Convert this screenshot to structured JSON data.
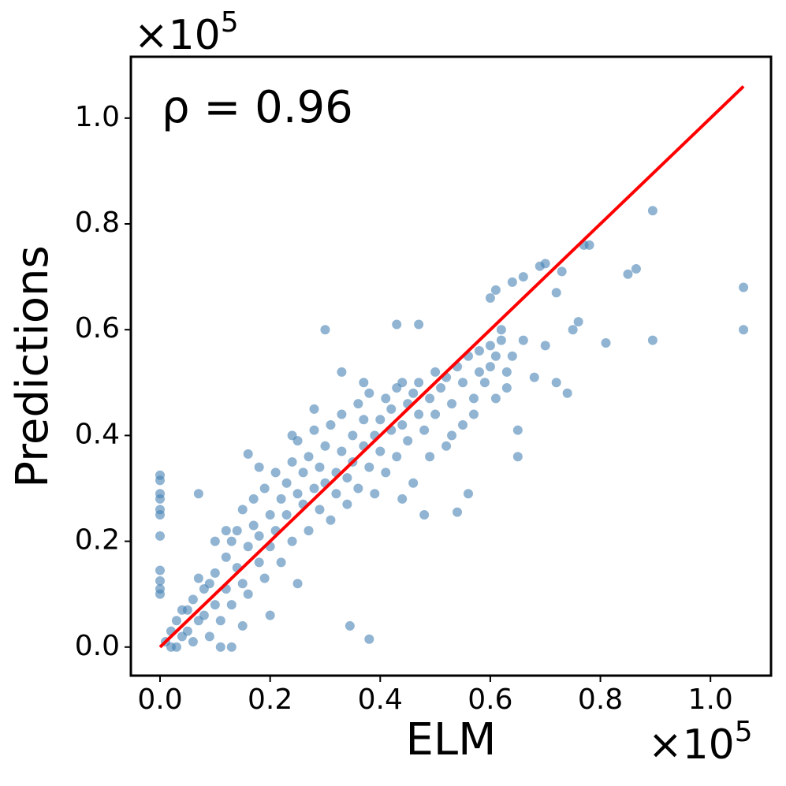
{
  "chart_data": {
    "type": "scatter",
    "x_label": "ELM",
    "y_label": "Predictions",
    "annotation": "ρ = 0.96",
    "x_offset": {
      "base": "×10",
      "exponent": "5"
    },
    "y_offset": {
      "base": "×10",
      "exponent": "5"
    },
    "color": "#4682b4",
    "x": [
      1.06,
      1.06,
      0.895,
      0.895,
      0.865,
      0.85,
      0.78,
      0.77,
      0.81,
      0.76,
      0.75,
      0.73,
      0.72,
      0.7,
      0.69,
      0.66,
      0.64,
      0.6,
      0.61,
      0,
      0,
      0,
      0,
      0,
      0,
      0,
      0,
      0,
      0,
      0,
      0.38,
      0.345,
      0.07,
      0.3,
      0.43,
      0.47,
      0.16,
      0.65,
      0.65,
      0.54,
      0.48,
      0.56,
      0.13,
      0.72,
      0.74,
      0.68,
      0.64,
      0.62,
      0.66,
      0.7,
      0.63,
      0.61,
      0.01,
      0.02,
      0.02,
      0.03,
      0.04,
      0.05,
      0.05,
      0.06,
      0.06,
      0.07,
      0.08,
      0.08,
      0.09,
      0.1,
      0.1,
      0.11,
      0.12,
      0.12,
      0.13,
      0.13,
      0.14,
      0.14,
      0.15,
      0.15,
      0.16,
      0.16,
      0.17,
      0.17,
      0.18,
      0.18,
      0.19,
      0.19,
      0.2,
      0.2,
      0.21,
      0.21,
      0.22,
      0.22,
      0.23,
      0.23,
      0.24,
      0.24,
      0.25,
      0.25,
      0.26,
      0.26,
      0.27,
      0.27,
      0.28,
      0.28,
      0.29,
      0.29,
      0.3,
      0.3,
      0.31,
      0.31,
      0.32,
      0.32,
      0.33,
      0.33,
      0.34,
      0.34,
      0.35,
      0.35,
      0.36,
      0.36,
      0.37,
      0.37,
      0.38,
      0.38,
      0.39,
      0.39,
      0.4,
      0.4,
      0.41,
      0.41,
      0.42,
      0.42,
      0.43,
      0.43,
      0.44,
      0.44,
      0.45,
      0.45,
      0.46,
      0.46,
      0.47,
      0.47,
      0.48,
      0.49,
      0.49,
      0.5,
      0.5,
      0.51,
      0.52,
      0.52,
      0.53,
      0.54,
      0.55,
      0.55,
      0.56,
      0.57,
      0.58,
      0.58,
      0.59,
      0.6,
      0.6,
      0.61,
      0.62,
      0.63,
      0.57,
      0.53,
      0.44,
      0.24,
      0.28,
      0.18,
      0.12,
      0.09,
      0.03,
      0.04,
      0.07,
      0.11,
      0.2,
      0.15,
      0.25,
      0.1,
      0.33,
      0.37
    ],
    "values": [
      0.68,
      0.6,
      0.825,
      0.58,
      0.715,
      0.705,
      0.76,
      0.76,
      0.575,
      0.615,
      0.6,
      0.71,
      0.67,
      0.725,
      0.72,
      0.7,
      0.69,
      0.66,
      0.675,
      0.325,
      0.315,
      0.29,
      0.28,
      0.26,
      0.25,
      0.21,
      0.145,
      0.125,
      0.11,
      0.1,
      0.015,
      0.04,
      0.29,
      0.6,
      0.61,
      0.61,
      0.365,
      0.36,
      0.41,
      0.255,
      0.25,
      0.29,
      0.0,
      0.5,
      0.48,
      0.51,
      0.55,
      0.6,
      0.58,
      0.57,
      0.49,
      0.47,
      0.01,
      0.03,
      0.0,
      0.05,
      0.02,
      0.07,
      0.03,
      0.09,
      0.01,
      0.05,
      0.11,
      0.06,
      0.02,
      0.14,
      0.08,
      0.05,
      0.17,
      0.11,
      0.2,
      0.08,
      0.15,
      0.22,
      0.12,
      0.26,
      0.19,
      0.1,
      0.23,
      0.28,
      0.16,
      0.21,
      0.3,
      0.13,
      0.25,
      0.19,
      0.33,
      0.22,
      0.28,
      0.16,
      0.31,
      0.25,
      0.35,
      0.2,
      0.29,
      0.39,
      0.27,
      0.33,
      0.22,
      0.36,
      0.3,
      0.41,
      0.26,
      0.34,
      0.31,
      0.38,
      0.24,
      0.42,
      0.33,
      0.29,
      0.37,
      0.44,
      0.32,
      0.27,
      0.4,
      0.35,
      0.46,
      0.3,
      0.38,
      0.43,
      0.34,
      0.48,
      0.4,
      0.29,
      0.43,
      0.37,
      0.47,
      0.33,
      0.41,
      0.45,
      0.49,
      0.36,
      0.42,
      0.5,
      0.39,
      0.46,
      0.48,
      0.31,
      0.44,
      0.5,
      0.41,
      0.47,
      0.36,
      0.52,
      0.44,
      0.49,
      0.38,
      0.51,
      0.46,
      0.53,
      0.42,
      0.5,
      0.55,
      0.47,
      0.52,
      0.56,
      0.5,
      0.57,
      0.53,
      0.55,
      0.58,
      0.52,
      0.44,
      0.4,
      0.28,
      0.4,
      0.45,
      0.34,
      0.22,
      0.12,
      0.0,
      0.07,
      0.13,
      0.0,
      0.06,
      0.04,
      0.12,
      0.2,
      0.52,
      0.5
    ],
    "fit_line": {
      "x": [
        0,
        1.06
      ],
      "y": [
        0,
        1.06
      ],
      "color": "#ff0000"
    },
    "xlim": [
      -0.053,
      1.11
    ],
    "ylim": [
      -0.054,
      1.116
    ],
    "xticks": [
      {
        "value": 0,
        "label": "0.0"
      },
      0.2,
      0.4,
      0.6,
      0.8,
      {
        "value": 1,
        "label": "1.0"
      }
    ],
    "yticks": [
      {
        "value": 0,
        "label": "0.0"
      },
      0.2,
      0.4,
      0.6,
      0.8,
      {
        "value": 1,
        "label": "1.0"
      }
    ]
  }
}
